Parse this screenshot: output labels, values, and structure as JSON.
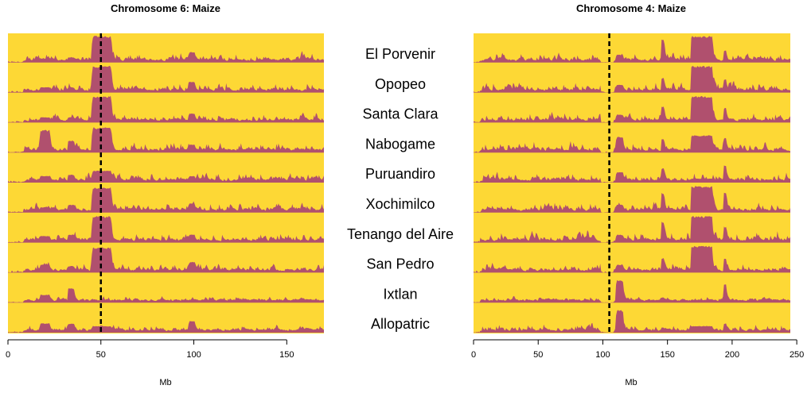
{
  "chart_data": [
    {
      "type": "area",
      "title": "Chromosome 6: Maize",
      "xlabel": "Mb",
      "ylabel": "",
      "xlim": [
        0,
        170
      ],
      "xticks": [
        0,
        50,
        100,
        150
      ],
      "vline": 50,
      "grid": false,
      "background_color": "#fdd835",
      "fill_color": "#b0506e",
      "populations": [
        "El Porvenir",
        "Opopeo",
        "Santa Clara",
        "Nabogame",
        "Puruandiro",
        "Xochimilco",
        "Tenango del Aire",
        "San Pedro",
        "Ixtlan",
        "Allopatric"
      ],
      "peaks": [
        {
          "x0": 45,
          "x1": 56,
          "heights": [
            1.0,
            1.0,
            1.0,
            0.95,
            0.45,
            0.95,
            1.0,
            0.95,
            0.0,
            0.25
          ]
        },
        {
          "x0": 17,
          "x1": 23,
          "heights": [
            0.15,
            0.2,
            0.2,
            0.85,
            0.25,
            0.2,
            0.25,
            0.3,
            0.3,
            0.35
          ]
        },
        {
          "x0": 32,
          "x1": 36,
          "heights": [
            0.2,
            0.2,
            0.2,
            0.45,
            0.3,
            0.3,
            0.3,
            0.25,
            0.55,
            0.35
          ]
        },
        {
          "x0": 97,
          "x1": 101,
          "heights": [
            0.4,
            0.4,
            0.35,
            0.3,
            0.25,
            0.35,
            0.3,
            0.4,
            0.1,
            0.45
          ]
        }
      ],
      "background_levels": [
        0.3,
        0.35,
        0.3,
        0.3,
        0.3,
        0.3,
        0.3,
        0.3,
        0.15,
        0.2
      ]
    },
    {
      "type": "area",
      "title": "Chromosome 4: Maize",
      "xlabel": "Mb",
      "ylabel": "",
      "xlim": [
        0,
        245
      ],
      "xticks": [
        0,
        50,
        100,
        150,
        200,
        250
      ],
      "vline": 105,
      "grid": false,
      "background_color": "#fdd835",
      "fill_color": "#b0506e",
      "populations": [
        "El Porvenir",
        "Opopeo",
        "Santa Clara",
        "Nabogame",
        "Puruandiro",
        "Xochimilco",
        "Tenango del Aire",
        "San Pedro",
        "Ixtlan",
        "Allopatric"
      ],
      "peaks": [
        {
          "x0": 168,
          "x1": 185,
          "heights": [
            1.0,
            1.0,
            1.0,
            0.65,
            0.15,
            1.0,
            1.0,
            1.0,
            0.1,
            0.25
          ]
        },
        {
          "x0": 110,
          "x1": 116,
          "heights": [
            0.3,
            0.3,
            0.3,
            0.6,
            0.4,
            0.3,
            0.3,
            0.3,
            0.85,
            0.85
          ]
        },
        {
          "x0": 145,
          "x1": 148,
          "heights": [
            0.9,
            0.55,
            0.6,
            0.5,
            0.55,
            0.75,
            0.8,
            0.55,
            0.2,
            0.2
          ]
        },
        {
          "x0": 193,
          "x1": 196,
          "heights": [
            0.45,
            0.5,
            0.55,
            0.55,
            0.65,
            0.75,
            0.6,
            0.55,
            0.7,
            0.35
          ]
        }
      ],
      "background_levels": [
        0.3,
        0.35,
        0.35,
        0.35,
        0.35,
        0.35,
        0.4,
        0.35,
        0.15,
        0.25
      ]
    }
  ]
}
